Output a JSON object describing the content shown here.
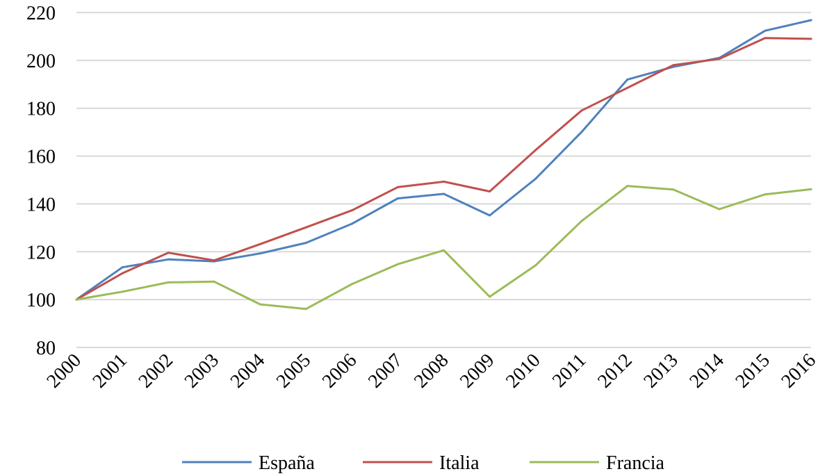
{
  "chart_data": {
    "type": "line",
    "title": "",
    "xlabel": "",
    "ylabel": "",
    "categories": [
      "2000",
      "2001",
      "2002",
      "2003",
      "2004",
      "2005",
      "2006",
      "2007",
      "2008",
      "2009",
      "2010",
      "2011",
      "2012",
      "2013",
      "2014",
      "2015",
      "2016"
    ],
    "ylim": [
      80,
      220
    ],
    "yticks": [
      80,
      100,
      120,
      140,
      160,
      180,
      200,
      220
    ],
    "grid": true,
    "legend_position": "bottom",
    "series": [
      {
        "name": "España",
        "color": "#4f81bd",
        "values": [
          100,
          113.5,
          116.8,
          116,
          119.3,
          123.7,
          131.7,
          142.3,
          144.2,
          135.2,
          150.5,
          170,
          192,
          197.3,
          201,
          212.4,
          216.8
        ]
      },
      {
        "name": "Italia",
        "color": "#c0504d",
        "values": [
          100,
          111,
          119.6,
          116.4,
          123.2,
          130.2,
          137.3,
          147,
          149.3,
          145.2,
          162.5,
          179,
          188.5,
          198,
          200.6,
          209.3,
          209
        ]
      },
      {
        "name": "Francia",
        "color": "#9bbb59",
        "values": [
          100,
          103.3,
          107.2,
          107.5,
          98,
          96.1,
          106.5,
          114.8,
          120.6,
          101.2,
          114.3,
          132.8,
          147.5,
          146,
          137.8,
          144,
          146.1
        ]
      }
    ]
  }
}
